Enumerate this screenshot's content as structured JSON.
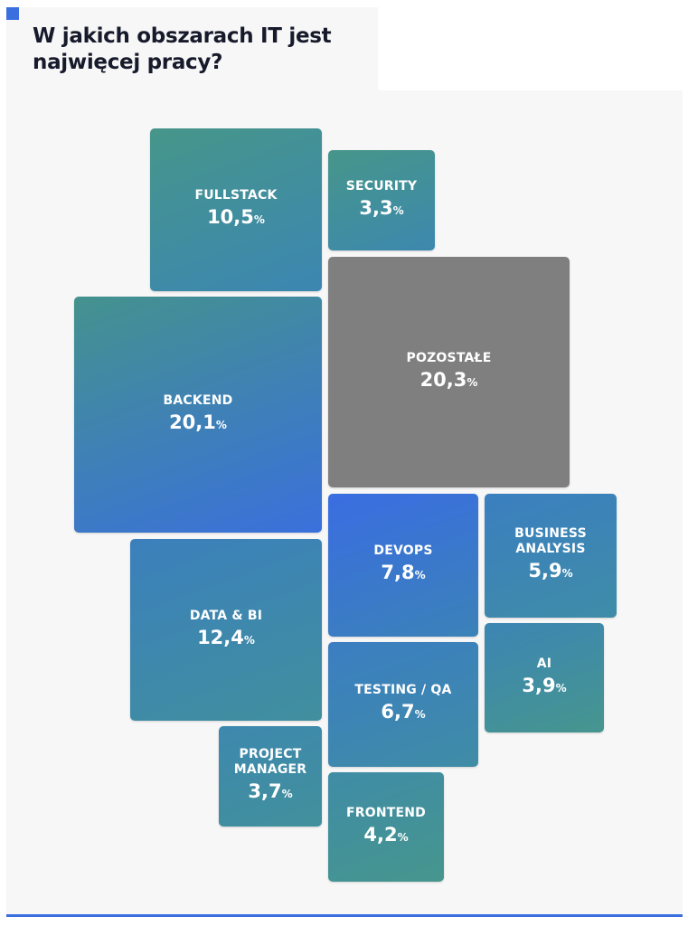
{
  "title": "W jakich obszarach IT jest najwięcej pracy?",
  "chart_data": {
    "type": "treemap",
    "title": "W jakich obszarach IT jest najwięcej pracy?",
    "unit": "%",
    "items": [
      {
        "key": "fullstack",
        "label": "FULLSTACK",
        "value": "10,5",
        "number": 10.5,
        "colors": [
          "#46968a",
          "#3c86b2"
        ]
      },
      {
        "key": "security",
        "label": "SECURITY",
        "value": "3,3",
        "number": 3.3,
        "colors": [
          "#46968a",
          "#3d88ae"
        ]
      },
      {
        "key": "pozostale",
        "label": "POZOSTAŁE",
        "value": "20,3",
        "number": 20.3,
        "colors": [
          "#7f7f7f",
          "#7f7f7f"
        ]
      },
      {
        "key": "backend",
        "label": "BACKEND",
        "value": "20,1",
        "number": 20.1,
        "colors": [
          "#44928e",
          "#3a70dc"
        ]
      },
      {
        "key": "devops",
        "label": "DEVOPS",
        "value": "7,8",
        "number": 7.8,
        "colors": [
          "#3a6de2",
          "#3b82b8"
        ]
      },
      {
        "key": "business-analysis",
        "label": "BUSINESS ANALYSIS",
        "value": "5,9",
        "number": 5.9,
        "colors": [
          "#3b7fc0",
          "#3f8ca8"
        ]
      },
      {
        "key": "data-bi",
        "label": "DATA & BI",
        "value": "12,4",
        "number": 12.4,
        "colors": [
          "#3b80bc",
          "#418f9e"
        ]
      },
      {
        "key": "ai",
        "label": "AI",
        "value": "3,9",
        "number": 3.9,
        "colors": [
          "#3c85b4",
          "#46968e"
        ]
      },
      {
        "key": "testing-qa",
        "label": "TESTING / QA",
        "value": "6,7",
        "number": 6.7,
        "colors": [
          "#3b7ec2",
          "#3f8ca6"
        ]
      },
      {
        "key": "project-manager",
        "label": "PROJECT MANAGER",
        "value": "3,7",
        "number": 3.7,
        "colors": [
          "#3d88ae",
          "#42909c"
        ]
      },
      {
        "key": "frontend",
        "label": "FRONTEND",
        "value": "4,2",
        "number": 4.2,
        "colors": [
          "#3f8ca6",
          "#46968e"
        ]
      }
    ]
  }
}
